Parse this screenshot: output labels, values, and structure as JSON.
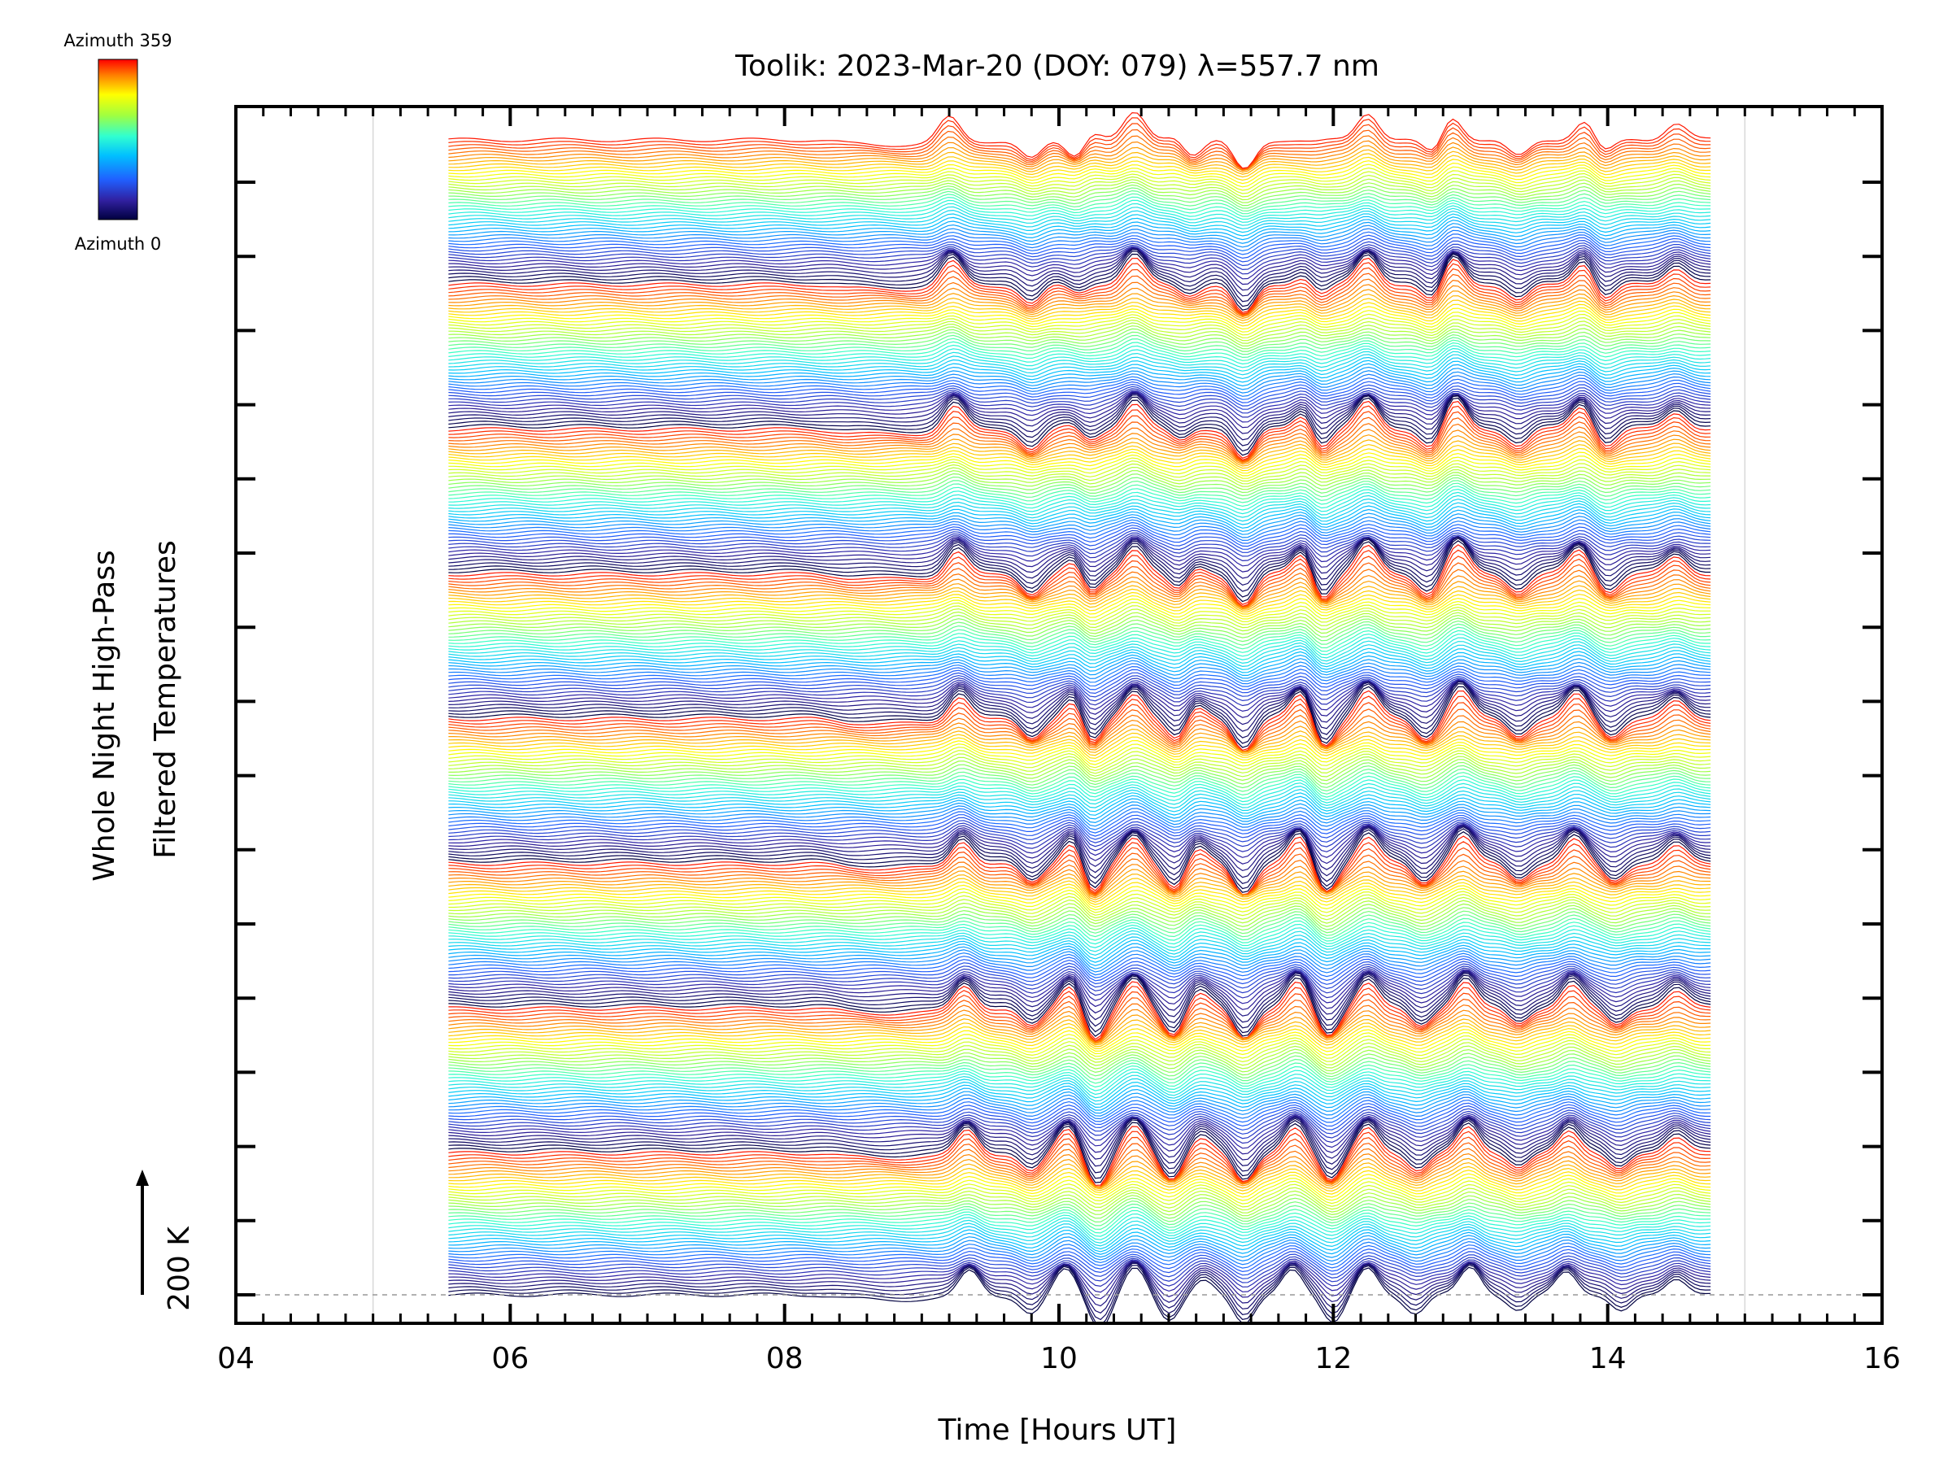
{
  "chart_data": {
    "type": "line",
    "title": "Toolik: 2023-Mar-20 (DOY: 079) λ=557.7 nm",
    "xlabel": "Time [Hours UT]",
    "ylabel": [
      "Whole Night High-Pass",
      "Filtered Temperatures"
    ],
    "xlim": [
      4,
      16
    ],
    "x_ticks": [
      "04",
      "06",
      "08",
      "10",
      "12",
      "14",
      "16"
    ],
    "x_minor_step": 0.2,
    "x_gridlines": [
      5,
      15
    ],
    "y_major_ticks": 15,
    "scale_label": "200 K",
    "data_start": 5.55,
    "data_end": 14.75,
    "series_count": 360,
    "stack_note": "traces vertically offset by azimuth, colored by azimuth",
    "grid": true,
    "colorbar": {
      "top_label": "Azimuth 359",
      "bottom_label": "Azimuth 0",
      "colormap": "rainbow",
      "colors": [
        "#000040",
        "#3020a0",
        "#2060ff",
        "#00c0ff",
        "#30ffd0",
        "#a0ff40",
        "#ffff00",
        "#ff8000",
        "#ff0000"
      ]
    },
    "event_times": [
      9.35,
      9.8,
      10.05,
      10.3,
      10.55,
      10.8,
      11.05,
      11.35,
      11.7,
      12.0,
      12.25,
      12.6,
      13.0,
      13.35,
      13.7,
      14.1,
      14.5
    ]
  }
}
